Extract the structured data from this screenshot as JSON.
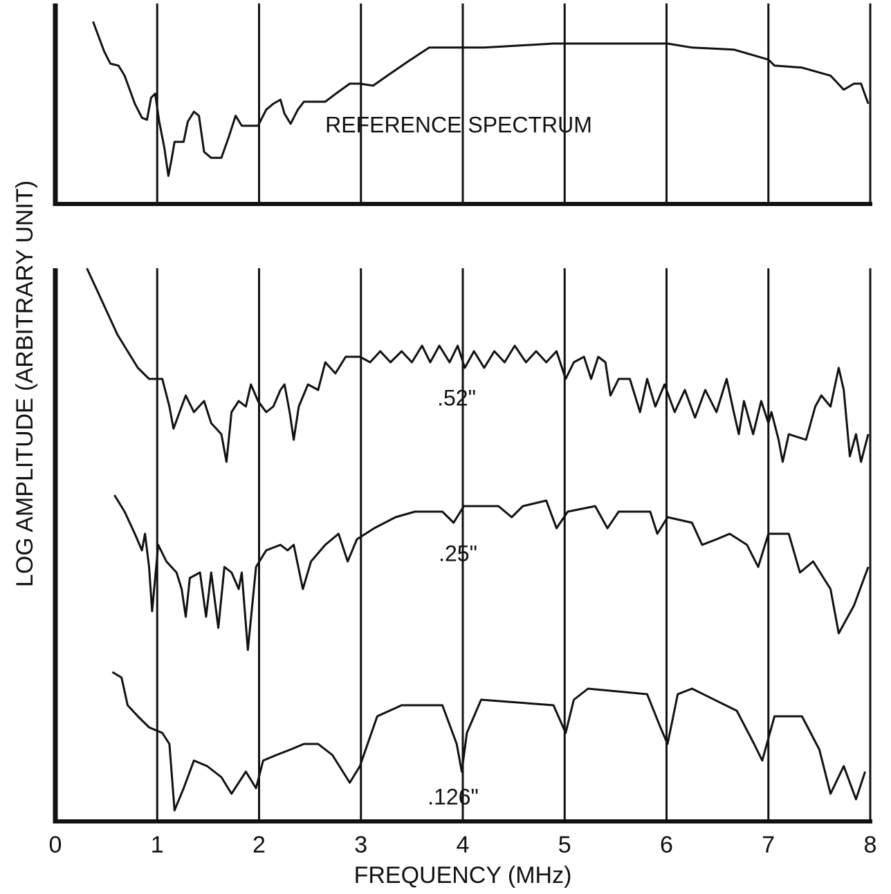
{
  "chart_data": [
    {
      "type": "line",
      "xlim": [
        0,
        8
      ],
      "xticks": [
        0,
        1,
        2,
        3,
        4,
        5,
        6,
        7,
        8
      ],
      "ylim": [
        0,
        100
      ],
      "grid": true,
      "color": "#111111",
      "series": [
        {
          "name": "REFERENCE SPECTRUM",
          "color": "#111111",
          "x": [
            0.37,
            0.48,
            0.54,
            0.62,
            0.68,
            0.78,
            0.85,
            0.9,
            0.94,
            0.98,
            1.02,
            1.07,
            1.11,
            1.14,
            1.17,
            1.26,
            1.3,
            1.36,
            1.41,
            1.46,
            1.53,
            1.63,
            1.7,
            1.77,
            1.83,
            1.99,
            2.07,
            2.14,
            2.21,
            2.25,
            2.31,
            2.38,
            2.44,
            2.65,
            2.78,
            2.89,
            2.99,
            3.12,
            3.26,
            3.46,
            3.67,
            4.21,
            4.89,
            6.01,
            6.25,
            6.66,
            7.0,
            7.06,
            7.33,
            7.61,
            7.74,
            7.84,
            7.91,
            7.98
          ],
          "values": [
            91,
            76,
            70,
            69,
            64,
            50,
            43,
            42,
            53,
            55,
            41,
            28,
            14,
            22,
            31,
            31,
            41,
            46,
            44,
            26,
            23,
            23,
            33,
            44,
            39,
            39,
            47,
            50,
            52,
            45,
            40,
            47,
            51,
            51,
            56,
            60,
            60,
            59,
            64,
            71,
            78,
            78,
            80,
            80,
            78,
            77,
            72,
            69,
            68,
            64,
            57,
            60,
            60,
            50
          ]
        }
      ]
    },
    {
      "type": "line",
      "xlabel": "FREQUENCY (MHz)",
      "ylabel": "LOG AMPLITUDE (ARBITRARY UNIT)",
      "xlim": [
        0,
        8
      ],
      "xticks": [
        0,
        1,
        2,
        3,
        4,
        5,
        6,
        7,
        8
      ],
      "ylim": [
        0,
        100
      ],
      "grid": true,
      "color": "#111111",
      "series": [
        {
          "name": ".52\"",
          "color": "#111111",
          "x": [
            0.31,
            0.41,
            0.51,
            0.61,
            0.71,
            0.81,
            0.92,
            1.05,
            1.12,
            1.16,
            1.22,
            1.28,
            1.36,
            1.46,
            1.53,
            1.63,
            1.68,
            1.73,
            1.8,
            1.87,
            1.92,
            1.99,
            2.07,
            2.14,
            2.21,
            2.25,
            2.3,
            2.34,
            2.39,
            2.48,
            2.58,
            2.65,
            2.75,
            2.85,
            2.99,
            3.09,
            3.19,
            3.29,
            3.4,
            3.5,
            3.6,
            3.68,
            3.77,
            3.87,
            3.95,
            4.02,
            4.11,
            4.21,
            4.31,
            4.41,
            4.51,
            4.62,
            4.72,
            4.82,
            4.92,
            5.01,
            5.09,
            5.19,
            5.26,
            5.33,
            5.4,
            5.45,
            5.53,
            5.64,
            5.74,
            5.81,
            5.89,
            5.98,
            6.08,
            6.18,
            6.28,
            6.38,
            6.49,
            6.59,
            6.66,
            6.71,
            6.76,
            6.85,
            6.93,
            7.0,
            7.03,
            7.1,
            7.14,
            7.2,
            7.37,
            7.46,
            7.52,
            7.61,
            7.69,
            7.74,
            7.8,
            7.86,
            7.91,
            7.98
          ],
          "values": [
            100,
            96,
            92,
            88,
            85,
            82,
            80,
            80,
            75,
            71,
            74,
            77,
            74,
            76,
            72,
            70,
            65,
            74,
            76,
            75,
            79,
            76,
            74,
            75,
            78,
            79,
            74,
            69,
            75,
            79,
            78,
            83,
            81,
            84,
            84,
            83,
            85,
            83,
            85,
            83,
            86,
            83,
            86,
            83,
            86,
            82,
            85,
            82,
            85,
            83,
            86,
            83,
            85,
            83,
            85,
            80,
            83,
            84,
            80,
            84,
            83,
            77,
            80,
            80,
            74,
            80,
            75,
            79,
            74,
            78,
            73,
            78,
            74,
            80,
            74,
            70,
            76,
            70,
            76,
            72,
            74,
            69,
            65,
            70,
            69,
            75,
            77,
            75,
            82,
            78,
            66,
            70,
            65,
            70
          ]
        },
        {
          "name": ".25\"",
          "color": "#111111",
          "x": [
            0.58,
            0.68,
            0.78,
            0.85,
            0.88,
            0.92,
            0.95,
            1.01,
            1.09,
            1.19,
            1.24,
            1.28,
            1.32,
            1.42,
            1.48,
            1.53,
            1.6,
            1.66,
            1.73,
            1.8,
            1.83,
            1.89,
            1.97,
            2.07,
            2.21,
            2.28,
            2.34,
            2.43,
            2.51,
            2.65,
            2.78,
            2.87,
            2.96,
            3.13,
            3.34,
            3.53,
            3.8,
            3.91,
            4.01,
            4.35,
            4.48,
            4.59,
            4.82,
            4.92,
            5.03,
            5.3,
            5.42,
            5.53,
            5.84,
            5.91,
            6.01,
            6.25,
            6.35,
            6.49,
            6.62,
            6.79,
            6.9,
            7.0,
            7.2,
            7.31,
            7.44,
            7.61,
            7.69,
            7.84,
            7.98
          ],
          "values": [
            59,
            56,
            52,
            49,
            52,
            46,
            38,
            50,
            47,
            45,
            42,
            37,
            44,
            45,
            37,
            45,
            35,
            46,
            45,
            42,
            45,
            31,
            46,
            49,
            50,
            49,
            50,
            42,
            47,
            50,
            52,
            47,
            51,
            53,
            55,
            56,
            56,
            54,
            57,
            57,
            55,
            57,
            58,
            53,
            56,
            57,
            53,
            56,
            56,
            52,
            55,
            54,
            50,
            51,
            52,
            50,
            46,
            52,
            52,
            45,
            47,
            42,
            34,
            39,
            46
          ]
        },
        {
          "name": ".126\"",
          "color": "#111111",
          "x": [
            0.56,
            0.65,
            0.71,
            0.81,
            0.92,
            1.05,
            1.12,
            1.17,
            1.26,
            1.36,
            1.49,
            1.63,
            1.73,
            1.87,
            1.97,
            2.04,
            2.17,
            2.31,
            2.44,
            2.58,
            2.72,
            2.89,
            2.99,
            3.16,
            3.4,
            3.8,
            3.94,
            3.99,
            4.04,
            4.18,
            4.89,
            5.01,
            5.09,
            5.23,
            5.81,
            5.94,
            6.01,
            6.11,
            6.25,
            6.69,
            6.86,
            6.94,
            7.06,
            7.33,
            7.5,
            7.61,
            7.74,
            7.86,
            7.95
          ],
          "values": [
            27,
            26,
            21,
            19,
            17,
            16,
            14,
            2,
            6,
            11,
            10,
            8,
            5,
            9,
            6,
            11,
            12,
            13,
            14,
            14,
            12,
            7,
            10,
            19,
            21,
            21,
            14,
            9,
            16,
            22,
            21,
            16,
            22,
            24,
            23,
            17,
            14,
            23,
            24,
            20,
            14,
            11,
            19,
            19,
            13,
            5,
            10,
            4,
            9
          ]
        }
      ]
    }
  ]
}
